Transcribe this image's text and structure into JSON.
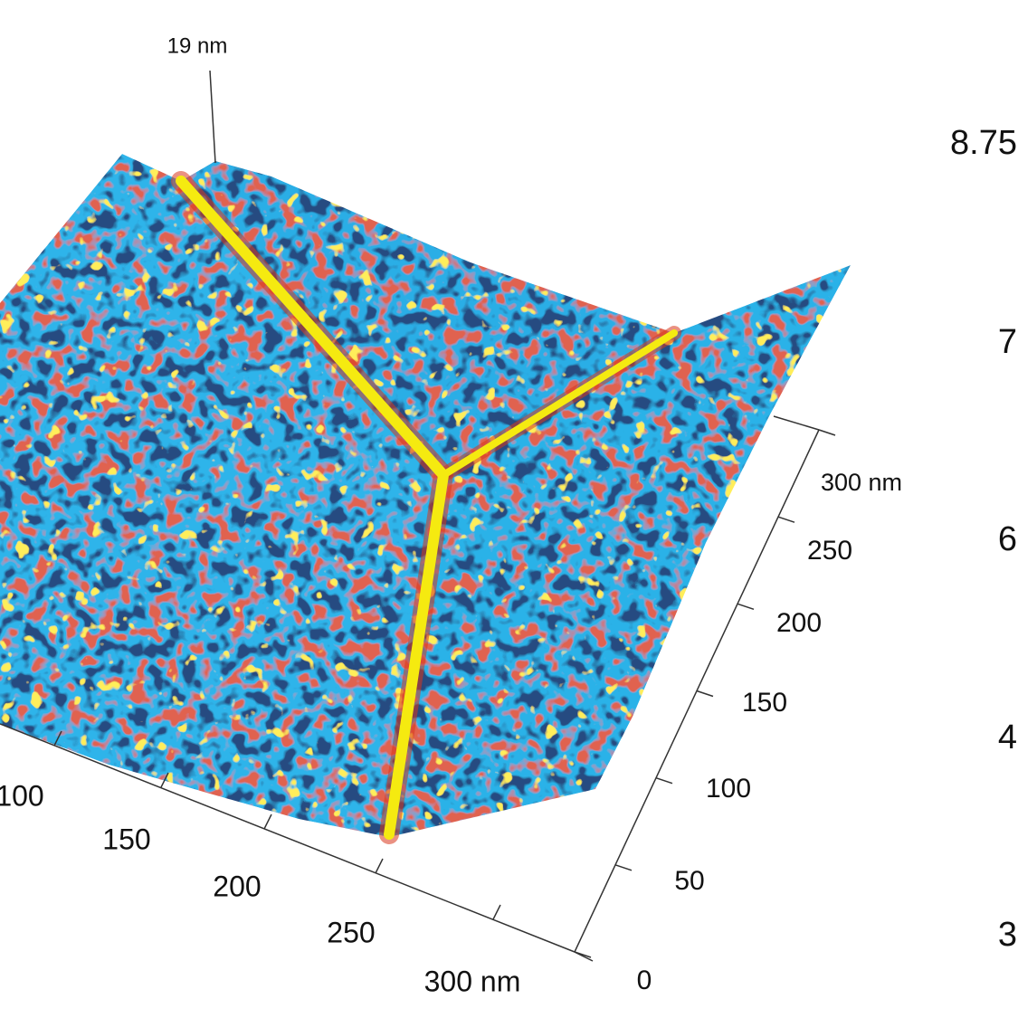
{
  "z_axis": {
    "label": "19 nm"
  },
  "x_axis": {
    "ticks": [
      "100",
      "150",
      "200",
      "250",
      "300 nm"
    ]
  },
  "y_axis": {
    "ticks": [
      "0",
      "50",
      "100",
      "150",
      "200",
      "250",
      "300 nm"
    ]
  },
  "colorbar": {
    "ticks": [
      "8.75",
      "7",
      "6",
      "4",
      "3"
    ]
  }
}
